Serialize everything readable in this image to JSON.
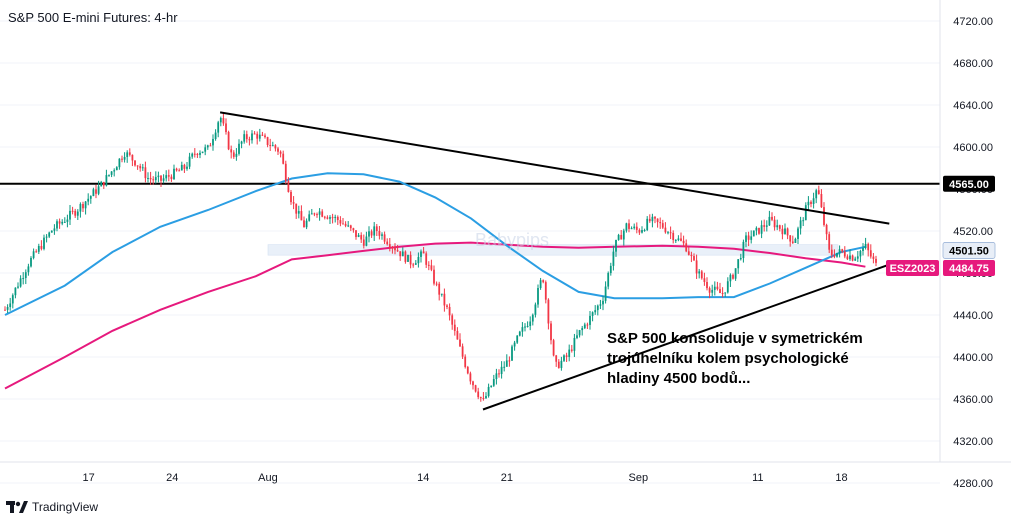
{
  "header": {
    "title": "S&P 500 E-mini Futures: 4-hr"
  },
  "annotation": {
    "lines": [
      "S&P 500 konsoliduje v symetrickém",
      "trojúhelníku kolem psychologické",
      "hladiny 4500 bodů..."
    ]
  },
  "watermark": "Babypips",
  "footer": {
    "brand": "TradingView"
  },
  "colors": {
    "up": "#089981",
    "down": "#f23645",
    "ma_fast": "#2b9ee3",
    "ma_slow": "#e6197d",
    "band": "#dbe7f6",
    "bg": "#ffffff"
  },
  "chart_data": {
    "type": "candlestick",
    "title": "S&P 500 E-mini Futures: 4-hr",
    "yaxis": {
      "ylim": [
        4240,
        4740
      ],
      "ticks": [
        4280,
        4320,
        4360,
        4400,
        4440,
        4480,
        4520,
        4560,
        4600,
        4640,
        4680,
        4720
      ],
      "tick_labels": [
        "4280.00",
        "4320.00",
        "4360.00",
        "4400.00",
        "4440.00",
        "4480.00",
        "4520.00",
        "4560.00",
        "4600.00",
        "4640.00",
        "4680.00",
        "4720.00"
      ]
    },
    "xaxis": {
      "tick_labels": [
        "17",
        "24",
        "Aug",
        "14",
        "21",
        "Sep",
        "11",
        "18"
      ]
    },
    "price_tags": [
      {
        "label": "4565.00",
        "value": 4565.0,
        "style": "black"
      },
      {
        "label": "4501.50",
        "value": 4501.5,
        "style": "light"
      },
      {
        "label": "ESZ2023",
        "value": 4484.75,
        "style": "pink"
      },
      {
        "label": "4484.75",
        "value": 4484.75,
        "style": "pink"
      }
    ],
    "horizontal_line": 4565.0,
    "band": [
      4497,
      4507
    ],
    "trendlines": [
      {
        "name": "upper",
        "from": {
          "x": "Jul 28",
          "y": 4633
        },
        "to": {
          "x": "Sep 22",
          "y": 4527
        }
      },
      {
        "name": "lower",
        "from": {
          "x": "Aug 19",
          "y": 4350
        },
        "to": {
          "x": "Sep 22",
          "y": 4488
        }
      }
    ],
    "moving_averages": [
      {
        "color": "#2b9ee3",
        "points": [
          [
            "Jul 10",
            4440
          ],
          [
            "Jul 15",
            4468
          ],
          [
            "Jul 19",
            4500
          ],
          [
            "Jul 23",
            4524
          ],
          [
            "Jul 27",
            4540
          ],
          [
            "Jul 31",
            4558
          ],
          [
            "Aug 3",
            4570
          ],
          [
            "Aug 6",
            4575
          ],
          [
            "Aug 9",
            4574
          ],
          [
            "Aug 12",
            4567
          ],
          [
            "Aug 15",
            4552
          ],
          [
            "Aug 18",
            4532
          ],
          [
            "Aug 21",
            4506
          ],
          [
            "Aug 24",
            4482
          ],
          [
            "Aug 27",
            4462
          ],
          [
            "Aug 30",
            4456
          ],
          [
            "Sep 3",
            4456
          ],
          [
            "Sep 6",
            4457
          ],
          [
            "Sep 9",
            4457
          ],
          [
            "Sep 12",
            4470
          ],
          [
            "Sep 15",
            4485
          ],
          [
            "Sep 18",
            4500
          ],
          [
            "Sep 20",
            4505
          ]
        ]
      },
      {
        "color": "#e6197d",
        "points": [
          [
            "Jul 10",
            4370
          ],
          [
            "Jul 15",
            4400
          ],
          [
            "Jul 19",
            4425
          ],
          [
            "Jul 23",
            4445
          ],
          [
            "Jul 27",
            4462
          ],
          [
            "Jul 31",
            4477
          ],
          [
            "Aug 3",
            4493
          ],
          [
            "Aug 6",
            4497
          ],
          [
            "Aug 9",
            4501
          ],
          [
            "Aug 12",
            4505
          ],
          [
            "Aug 15",
            4508
          ],
          [
            "Aug 18",
            4509
          ],
          [
            "Aug 21",
            4507
          ],
          [
            "Aug 24",
            4505
          ],
          [
            "Aug 27",
            4504
          ],
          [
            "Aug 30",
            4505
          ],
          [
            "Sep 3",
            4506
          ],
          [
            "Sep 6",
            4505
          ],
          [
            "Sep 9",
            4503
          ],
          [
            "Sep 12",
            4499
          ],
          [
            "Sep 15",
            4494
          ],
          [
            "Sep 18",
            4490
          ],
          [
            "Sep 20",
            4486
          ]
        ]
      }
    ],
    "price_path": [
      [
        "Jul 10",
        4445
      ],
      [
        "Jul 12",
        4490
      ],
      [
        "Jul 14",
        4522
      ],
      [
        "Jul 16",
        4540
      ],
      [
        "Jul 18",
        4563
      ],
      [
        "Jul 19",
        4578
      ],
      [
        "Jul 20",
        4595
      ],
      [
        "Jul 21",
        4585
      ],
      [
        "Jul 22",
        4570
      ],
      [
        "Jul 23",
        4568
      ],
      [
        "Jul 25",
        4580
      ],
      [
        "Jul 26",
        4596
      ],
      [
        "Jul 27",
        4598
      ],
      [
        "Jul 28",
        4630
      ],
      [
        "Jul 29",
        4590
      ],
      [
        "Jul 30",
        4608
      ],
      [
        "Jul 31",
        4612
      ],
      [
        "Aug 2",
        4596
      ],
      [
        "Aug 3",
        4548
      ],
      [
        "Aug 4",
        4525
      ],
      [
        "Aug 5",
        4540
      ],
      [
        "Aug 7",
        4530
      ],
      [
        "Aug 9",
        4510
      ],
      [
        "Aug 10",
        4522
      ],
      [
        "Aug 12",
        4500
      ],
      [
        "Aug 13",
        4490
      ],
      [
        "Aug 14",
        4498
      ],
      [
        "Aug 15",
        4470
      ],
      [
        "Aug 16",
        4445
      ],
      [
        "Aug 17",
        4410
      ],
      [
        "Aug 18",
        4378
      ],
      [
        "Aug 19",
        4357
      ],
      [
        "Aug 20",
        4380
      ],
      [
        "Aug 21",
        4395
      ],
      [
        "Aug 22",
        4420
      ],
      [
        "Aug 23",
        4438
      ],
      [
        "Aug 24",
        4478
      ],
      [
        "Aug 25",
        4390
      ],
      [
        "Aug 26",
        4400
      ],
      [
        "Aug 27",
        4422
      ],
      [
        "Aug 28",
        4438
      ],
      [
        "Aug 29",
        4455
      ],
      [
        "Aug 30",
        4505
      ],
      [
        "Aug 31",
        4525
      ],
      [
        "Sep 1",
        4520
      ],
      [
        "Sep 2",
        4530
      ],
      [
        "Sep 3",
        4525
      ],
      [
        "Sep 4",
        4515
      ],
      [
        "Sep 5",
        4505
      ],
      [
        "Sep 6",
        4480
      ],
      [
        "Sep 7",
        4465
      ],
      [
        "Sep 8",
        4460
      ],
      [
        "Sep 9",
        4480
      ],
      [
        "Sep 10",
        4512
      ],
      [
        "Sep 11",
        4520
      ],
      [
        "Sep 12",
        4530
      ],
      [
        "Sep 13",
        4522
      ],
      [
        "Sep 14",
        4510
      ],
      [
        "Sep 15",
        4540
      ],
      [
        "Sep 16",
        4560
      ],
      [
        "Sep 17",
        4498
      ],
      [
        "Sep 18",
        4500
      ],
      [
        "Sep 19",
        4495
      ],
      [
        "Sep 20",
        4505
      ],
      [
        "Sep 21",
        4485
      ]
    ]
  }
}
